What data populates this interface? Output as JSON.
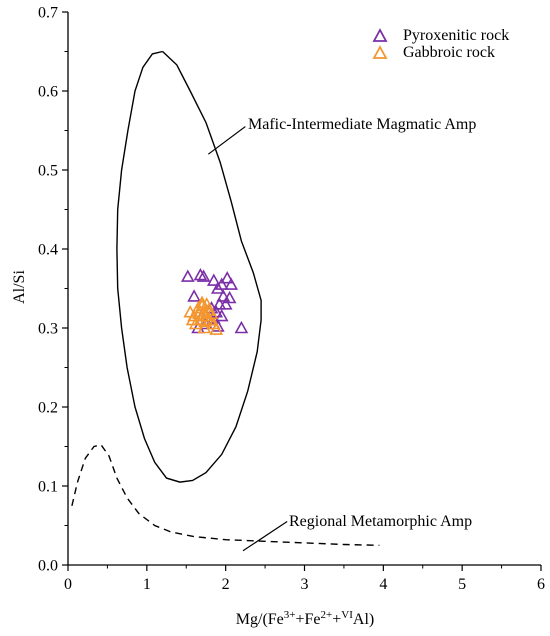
{
  "chart_data": {
    "type": "scatter",
    "xlabel": "Mg/(Fe3++Fe2++VIAl)",
    "xlabel_parts": {
      "prefix": "Mg/(Fe",
      "sup1": "3+",
      "mid1": "+Fe",
      "sup2": "2+",
      "mid2": "+",
      "sup3": "VI",
      "suffix": "Al)"
    },
    "ylabel": "Al/Si",
    "xlim": [
      0,
      6
    ],
    "ylim": [
      0,
      0.7
    ],
    "x_ticks": [
      0,
      1,
      2,
      3,
      4,
      5,
      6
    ],
    "y_ticks": [
      0.0,
      0.1,
      0.2,
      0.3,
      0.4,
      0.5,
      0.6,
      0.7
    ],
    "x_tick_labels": [
      "0",
      "1",
      "2",
      "3",
      "4",
      "5",
      "6"
    ],
    "y_tick_labels": [
      "0.0",
      "0.1",
      "0.2",
      "0.3",
      "0.4",
      "0.5",
      "0.6",
      "0.7"
    ],
    "legend_position": "top-right",
    "series": [
      {
        "name": "Pyroxenitic rock",
        "color": "#7b2fa8",
        "marker": "open-triangle",
        "points": [
          [
            1.52,
            0.365
          ],
          [
            1.68,
            0.367
          ],
          [
            1.72,
            0.365
          ],
          [
            1.6,
            0.34
          ],
          [
            1.85,
            0.36
          ],
          [
            1.95,
            0.355
          ],
          [
            2.02,
            0.363
          ],
          [
            2.07,
            0.355
          ],
          [
            1.9,
            0.35
          ],
          [
            1.97,
            0.34
          ],
          [
            2.0,
            0.33
          ],
          [
            2.05,
            0.338
          ],
          [
            1.92,
            0.33
          ],
          [
            1.82,
            0.325
          ],
          [
            1.88,
            0.32
          ],
          [
            1.78,
            0.31
          ],
          [
            1.7,
            0.315
          ],
          [
            1.75,
            0.305
          ],
          [
            1.85,
            0.312
          ],
          [
            1.95,
            0.315
          ],
          [
            2.2,
            0.3
          ],
          [
            1.65,
            0.3
          ],
          [
            1.9,
            0.302
          ]
        ]
      },
      {
        "name": "Gabbroic rock",
        "color": "#f4962e",
        "marker": "open-triangle",
        "points": [
          [
            1.55,
            0.32
          ],
          [
            1.6,
            0.315
          ],
          [
            1.65,
            0.325
          ],
          [
            1.7,
            0.328
          ],
          [
            1.72,
            0.318
          ],
          [
            1.68,
            0.31
          ],
          [
            1.75,
            0.315
          ],
          [
            1.78,
            0.322
          ],
          [
            1.62,
            0.305
          ],
          [
            1.8,
            0.31
          ],
          [
            1.73,
            0.3
          ],
          [
            1.85,
            0.305
          ],
          [
            1.88,
            0.298
          ],
          [
            1.7,
            0.332
          ],
          [
            1.76,
            0.33
          ],
          [
            1.66,
            0.318
          ],
          [
            1.82,
            0.318
          ],
          [
            1.58,
            0.31
          ],
          [
            1.74,
            0.308
          ]
        ]
      }
    ],
    "fields": [
      {
        "name": "Mafic-Intermediate Magmatic Amp",
        "style": "solid",
        "points": [
          [
            1.2,
            0.65
          ],
          [
            1.07,
            0.647
          ],
          [
            0.95,
            0.63
          ],
          [
            0.85,
            0.6
          ],
          [
            0.76,
            0.55
          ],
          [
            0.68,
            0.5
          ],
          [
            0.63,
            0.45
          ],
          [
            0.62,
            0.4
          ],
          [
            0.63,
            0.35
          ],
          [
            0.68,
            0.3
          ],
          [
            0.75,
            0.25
          ],
          [
            0.85,
            0.2
          ],
          [
            0.97,
            0.16
          ],
          [
            1.1,
            0.13
          ],
          [
            1.25,
            0.11
          ],
          [
            1.42,
            0.105
          ],
          [
            1.58,
            0.107
          ],
          [
            1.75,
            0.117
          ],
          [
            1.95,
            0.14
          ],
          [
            2.13,
            0.175
          ],
          [
            2.28,
            0.22
          ],
          [
            2.4,
            0.27
          ],
          [
            2.45,
            0.31
          ],
          [
            2.45,
            0.335
          ],
          [
            2.35,
            0.37
          ],
          [
            2.2,
            0.41
          ],
          [
            2.07,
            0.46
          ],
          [
            1.93,
            0.51
          ],
          [
            1.75,
            0.56
          ],
          [
            1.55,
            0.6
          ],
          [
            1.38,
            0.633
          ],
          [
            1.2,
            0.65
          ]
        ]
      },
      {
        "name": "Regional Metamorphic Amp",
        "style": "dashed",
        "points": [
          [
            0.05,
            0.075
          ],
          [
            0.12,
            0.105
          ],
          [
            0.22,
            0.135
          ],
          [
            0.33,
            0.15
          ],
          [
            0.42,
            0.152
          ],
          [
            0.52,
            0.138
          ],
          [
            0.62,
            0.11
          ],
          [
            0.75,
            0.085
          ],
          [
            0.9,
            0.065
          ],
          [
            1.1,
            0.05
          ],
          [
            1.3,
            0.042
          ],
          [
            1.6,
            0.036
          ],
          [
            2.0,
            0.032
          ],
          [
            2.5,
            0.03
          ],
          [
            3.0,
            0.028
          ],
          [
            3.5,
            0.026
          ],
          [
            3.95,
            0.025
          ]
        ]
      }
    ],
    "annotations": [
      {
        "text": "Mafic-Intermediate Magmatic Amp",
        "anchor": [
          2.25,
          0.555
        ],
        "target": [
          1.78,
          0.52
        ]
      },
      {
        "text": "Regional Metamorphic Amp",
        "anchor": [
          2.78,
          0.055
        ],
        "target": [
          2.22,
          0.018
        ]
      }
    ]
  }
}
